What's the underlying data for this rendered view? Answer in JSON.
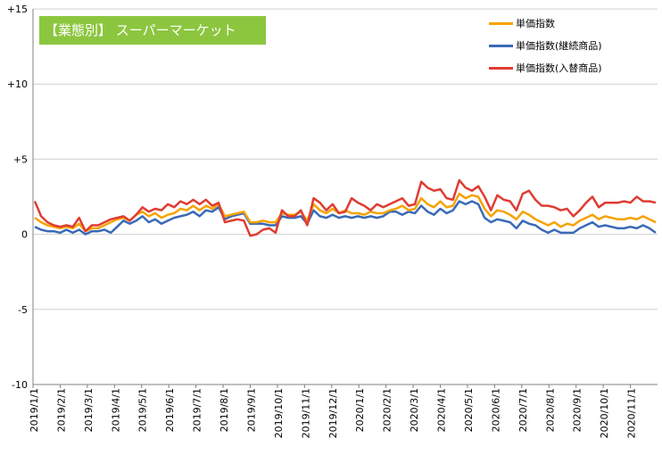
{
  "chart_data": {
    "type": "line",
    "title": "【業態別】 スーパーマーケット",
    "ylim": [
      -10,
      15
    ],
    "yticks": [
      15,
      10,
      5,
      0,
      -5,
      -10
    ],
    "ytick_labels": [
      "+15",
      "+10",
      "+5",
      "0",
      "-5",
      "-10"
    ],
    "grid": "horizontal",
    "legend_position": "top-right",
    "x_month_labels": [
      "2019/1/1",
      "2019/2/1",
      "2019/3/1",
      "2019/4/1",
      "2019/5/1",
      "2019/6/1",
      "2019/7/1",
      "2019/8/1",
      "2019/9/1",
      "2019/10/1",
      "2019/11/1",
      "2019/12/1",
      "2020/1/1",
      "2020/2/1",
      "2020/3/1",
      "2020/4/1",
      "2020/5/1",
      "2020/6/1",
      "2020/7/1",
      "2020/8/1",
      "2020/9/1",
      "2020/10/1",
      "2020/11/1"
    ],
    "x_start": "2019/1/1",
    "x_step": "weekly",
    "series": [
      {
        "name": "単価指数",
        "color": "#f5a300",
        "values": [
          1.1,
          0.8,
          0.6,
          0.5,
          0.4,
          0.5,
          0.4,
          0.7,
          0.2,
          0.4,
          0.4,
          0.6,
          0.8,
          1.0,
          1.1,
          0.9,
          1.3,
          1.5,
          1.2,
          1.4,
          1.1,
          1.3,
          1.4,
          1.7,
          1.6,
          1.9,
          1.6,
          1.9,
          1.7,
          2.0,
          1.2,
          1.3,
          1.4,
          1.5,
          0.8,
          0.8,
          0.9,
          0.8,
          0.8,
          1.4,
          1.3,
          1.3,
          1.5,
          0.9,
          2.0,
          1.6,
          1.4,
          1.7,
          1.4,
          1.6,
          1.4,
          1.4,
          1.3,
          1.5,
          1.4,
          1.4,
          1.6,
          1.7,
          1.9,
          1.6,
          1.7,
          2.4,
          2.0,
          1.8,
          2.2,
          1.8,
          1.9,
          2.7,
          2.4,
          2.6,
          2.5,
          1.7,
          1.2,
          1.6,
          1.5,
          1.3,
          1.0,
          1.5,
          1.3,
          1.0,
          0.8,
          0.6,
          0.8,
          0.5,
          0.7,
          0.6,
          0.9,
          1.1,
          1.3,
          1.0,
          1.2,
          1.1,
          1.0,
          1.0,
          1.1,
          1.0,
          1.2,
          1.0,
          0.8
        ]
      },
      {
        "name": "単価指数(継続商品)",
        "color": "#3a6ab8",
        "values": [
          0.5,
          0.3,
          0.2,
          0.2,
          0.1,
          0.3,
          0.1,
          0.3,
          0.0,
          0.2,
          0.2,
          0.3,
          0.1,
          0.5,
          0.9,
          0.7,
          0.9,
          1.2,
          0.8,
          1.0,
          0.7,
          0.9,
          1.1,
          1.2,
          1.3,
          1.5,
          1.2,
          1.6,
          1.5,
          1.8,
          1.0,
          1.2,
          1.3,
          1.4,
          0.7,
          0.7,
          0.7,
          0.6,
          0.6,
          1.2,
          1.1,
          1.1,
          1.2,
          0.7,
          1.6,
          1.2,
          1.1,
          1.3,
          1.1,
          1.2,
          1.1,
          1.2,
          1.1,
          1.2,
          1.1,
          1.2,
          1.5,
          1.5,
          1.3,
          1.5,
          1.4,
          1.9,
          1.5,
          1.3,
          1.7,
          1.4,
          1.6,
          2.2,
          2.0,
          2.2,
          2.0,
          1.1,
          0.8,
          1.0,
          0.9,
          0.8,
          0.4,
          0.9,
          0.7,
          0.6,
          0.3,
          0.1,
          0.3,
          0.1,
          0.1,
          0.1,
          0.4,
          0.6,
          0.8,
          0.5,
          0.6,
          0.5,
          0.4,
          0.4,
          0.5,
          0.4,
          0.6,
          0.4,
          0.1
        ]
      },
      {
        "name": "単価指数(入替商品)",
        "color": "#e03c32",
        "values": [
          2.2,
          1.2,
          0.8,
          0.6,
          0.5,
          0.6,
          0.5,
          1.1,
          0.2,
          0.6,
          0.6,
          0.8,
          1.0,
          1.1,
          1.2,
          0.9,
          1.3,
          1.8,
          1.5,
          1.7,
          1.6,
          2.0,
          1.8,
          2.2,
          2.0,
          2.3,
          2.0,
          2.3,
          1.9,
          2.1,
          0.8,
          0.9,
          1.0,
          0.9,
          -0.1,
          0.0,
          0.3,
          0.4,
          0.1,
          1.6,
          1.2,
          1.2,
          1.6,
          0.6,
          2.4,
          2.1,
          1.6,
          2.0,
          1.4,
          1.5,
          2.4,
          2.1,
          1.9,
          1.6,
          2.0,
          1.8,
          2.0,
          2.2,
          2.4,
          1.9,
          2.0,
          3.5,
          3.1,
          2.9,
          3.0,
          2.4,
          2.3,
          3.6,
          3.1,
          2.9,
          3.2,
          2.5,
          1.6,
          2.6,
          2.3,
          2.2,
          1.6,
          2.7,
          2.9,
          2.3,
          1.9,
          1.9,
          1.8,
          1.6,
          1.7,
          1.2,
          1.6,
          2.1,
          2.5,
          1.8,
          2.1,
          2.1,
          2.1,
          2.2,
          2.1,
          2.5,
          2.2,
          2.2,
          2.1
        ]
      }
    ]
  }
}
